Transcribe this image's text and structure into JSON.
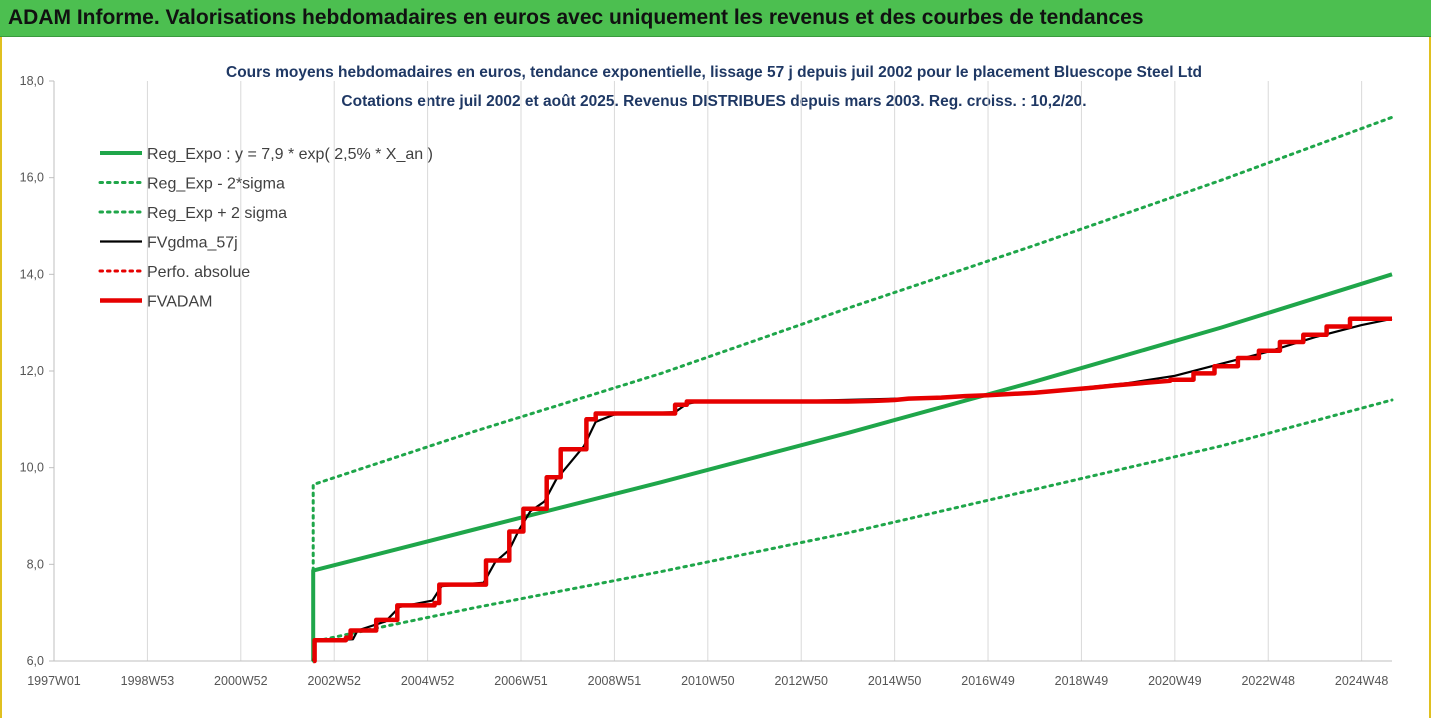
{
  "header": {
    "title": "ADAM Informe. Valorisations hebdomadaires en euros avec uniquement les revenus et des courbes de tendances"
  },
  "colors": {
    "banner": "#4cbf50",
    "trend": "#1fa64a",
    "moving_average": "#000000",
    "absolute_perf": "#e60000",
    "adam": "#e60000",
    "title": "#1f3864"
  },
  "chart_data": {
    "type": "line",
    "title": "Cours moyens hebdomadaires en euros, tendance exponentielle, lissage 57 j depuis juil 2002 pour le placement Bluescope Steel Ltd",
    "subtitle": "Cotations entre juil 2002 et août 2025. Revenus DISTRIBUES depuis mars 2003. Reg. croiss. : 10,2/20.",
    "xlabel": "",
    "ylabel": "",
    "x_range": [
      1997.0,
      2025.65
    ],
    "ylim": [
      6.0,
      18.0
    ],
    "y_ticks": [
      "6,0",
      "8,0",
      "10,0",
      "12,0",
      "14,0",
      "16,0",
      "18,0"
    ],
    "y_tick_values": [
      6,
      8,
      10,
      12,
      14,
      16,
      18
    ],
    "x_ticks": [
      "1997W01",
      "1998W53",
      "2000W52",
      "2002W52",
      "2004W52",
      "2006W51",
      "2008W51",
      "2010W50",
      "2012W50",
      "2014W50",
      "2016W49",
      "2018W49",
      "2020W49",
      "2022W48",
      "2024W48"
    ],
    "x_tick_values": [
      1997.0,
      1999.0,
      2001.0,
      2003.0,
      2005.0,
      2007.0,
      2009.0,
      2011.0,
      2013.0,
      2015.0,
      2017.0,
      2019.0,
      2021.0,
      2023.0,
      2025.0
    ],
    "grid": "vertical",
    "legend_position": "top-left",
    "series": [
      {
        "name": "Reg_Expo : y = 7,9 * exp( 2,5% *  X_an )",
        "style": "solid-thick",
        "color": "#1fa64a",
        "points": [
          [
            2002.55,
            6.0
          ],
          [
            2002.55,
            7.87
          ],
          [
            2006.0,
            8.72
          ],
          [
            2010.0,
            9.7
          ],
          [
            2014.0,
            10.72
          ],
          [
            2018.0,
            11.78
          ],
          [
            2022.0,
            12.9
          ],
          [
            2025.65,
            14.0
          ]
        ]
      },
      {
        "name": "Reg_Exp - 2*sigma",
        "style": "dotted",
        "color": "#1fa64a",
        "points": [
          [
            2002.55,
            6.0
          ],
          [
            2002.55,
            6.4
          ],
          [
            2004.0,
            6.7
          ],
          [
            2006.0,
            7.1
          ],
          [
            2010.0,
            7.85
          ],
          [
            2014.0,
            8.65
          ],
          [
            2018.0,
            9.55
          ],
          [
            2022.0,
            10.45
          ],
          [
            2025.65,
            11.4
          ]
        ]
      },
      {
        "name": "Reg_Exp + 2 sigma",
        "style": "dotted",
        "color": "#1fa64a",
        "points": [
          [
            2002.55,
            7.87
          ],
          [
            2002.55,
            9.65
          ],
          [
            2006.0,
            10.75
          ],
          [
            2010.0,
            11.95
          ],
          [
            2014.0,
            13.3
          ],
          [
            2018.0,
            14.6
          ],
          [
            2022.0,
            15.95
          ],
          [
            2025.65,
            17.25
          ]
        ]
      },
      {
        "name": "FVgdma_57j",
        "style": "solid",
        "color": "#000000",
        "points": [
          [
            2002.55,
            6.0
          ],
          [
            2002.6,
            6.42
          ],
          [
            2003.4,
            6.45
          ],
          [
            2003.5,
            6.63
          ],
          [
            2004.1,
            6.82
          ],
          [
            2004.4,
            7.12
          ],
          [
            2005.1,
            7.25
          ],
          [
            2005.3,
            7.55
          ],
          [
            2006.2,
            7.62
          ],
          [
            2006.45,
            8.05
          ],
          [
            2006.75,
            8.3
          ],
          [
            2006.95,
            8.7
          ],
          [
            2007.2,
            9.1
          ],
          [
            2007.5,
            9.3
          ],
          [
            2007.75,
            9.75
          ],
          [
            2008.05,
            10.1
          ],
          [
            2008.35,
            10.45
          ],
          [
            2008.6,
            10.95
          ],
          [
            2009.0,
            11.1
          ],
          [
            2010.3,
            11.15
          ],
          [
            2010.55,
            11.32
          ],
          [
            2010.85,
            11.38
          ],
          [
            2013.0,
            11.38
          ],
          [
            2016.0,
            11.45
          ],
          [
            2018.0,
            11.55
          ],
          [
            2019.0,
            11.65
          ],
          [
            2020.0,
            11.75
          ],
          [
            2021.0,
            11.9
          ],
          [
            2022.0,
            12.15
          ],
          [
            2023.0,
            12.4
          ],
          [
            2024.0,
            12.7
          ],
          [
            2025.0,
            12.95
          ],
          [
            2025.65,
            13.08
          ]
        ]
      },
      {
        "name": "Perfo. absolue",
        "style": "dotted",
        "color": "#e60000",
        "points": []
      },
      {
        "name": "FVADAM",
        "style": "step-thick",
        "color": "#e60000",
        "points": [
          [
            2002.55,
            6.0
          ],
          [
            2002.58,
            6.0
          ],
          [
            2002.58,
            6.43
          ],
          [
            2003.25,
            6.43
          ],
          [
            2003.25,
            6.48
          ],
          [
            2003.35,
            6.48
          ],
          [
            2003.35,
            6.63
          ],
          [
            2003.9,
            6.63
          ],
          [
            2003.9,
            6.85
          ],
          [
            2004.35,
            6.85
          ],
          [
            2004.35,
            7.15
          ],
          [
            2005.15,
            7.15
          ],
          [
            2005.15,
            7.2
          ],
          [
            2005.25,
            7.2
          ],
          [
            2005.25,
            7.58
          ],
          [
            2006.25,
            7.58
          ],
          [
            2006.25,
            8.08
          ],
          [
            2006.75,
            8.08
          ],
          [
            2006.75,
            8.68
          ],
          [
            2007.05,
            8.68
          ],
          [
            2007.05,
            9.15
          ],
          [
            2007.55,
            9.15
          ],
          [
            2007.55,
            9.8
          ],
          [
            2007.85,
            9.8
          ],
          [
            2007.85,
            10.38
          ],
          [
            2008.4,
            10.38
          ],
          [
            2008.4,
            11.0
          ],
          [
            2008.6,
            11.0
          ],
          [
            2008.6,
            11.12
          ],
          [
            2010.3,
            11.12
          ],
          [
            2010.3,
            11.3
          ],
          [
            2010.55,
            11.3
          ],
          [
            2010.55,
            11.37
          ],
          [
            2014.0,
            11.37
          ],
          [
            2014.5,
            11.38
          ],
          [
            2015.0,
            11.4
          ],
          [
            2015.3,
            11.43
          ],
          [
            2016.0,
            11.45
          ],
          [
            2016.5,
            11.48
          ],
          [
            2017.0,
            11.5
          ],
          [
            2018.0,
            11.55
          ],
          [
            2018.6,
            11.6
          ],
          [
            2019.2,
            11.65
          ],
          [
            2019.7,
            11.7
          ],
          [
            2020.3,
            11.75
          ],
          [
            2020.9,
            11.8
          ],
          [
            2020.9,
            11.82
          ],
          [
            2021.4,
            11.82
          ],
          [
            2021.4,
            11.95
          ],
          [
            2021.85,
            11.95
          ],
          [
            2021.85,
            12.1
          ],
          [
            2022.35,
            12.1
          ],
          [
            2022.35,
            12.27
          ],
          [
            2022.8,
            12.27
          ],
          [
            2022.8,
            12.42
          ],
          [
            2023.25,
            12.42
          ],
          [
            2023.25,
            12.6
          ],
          [
            2023.75,
            12.6
          ],
          [
            2023.75,
            12.75
          ],
          [
            2024.25,
            12.75
          ],
          [
            2024.25,
            12.92
          ],
          [
            2024.75,
            12.92
          ],
          [
            2024.75,
            13.08
          ],
          [
            2025.65,
            13.08
          ]
        ]
      }
    ]
  }
}
